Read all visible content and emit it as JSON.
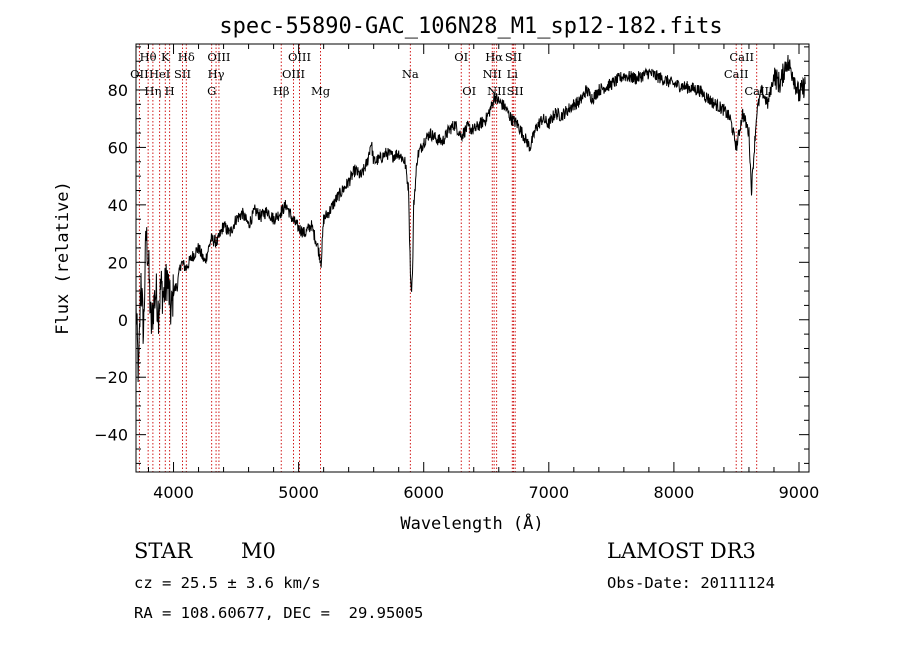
{
  "chart_data": {
    "type": "line",
    "title": "spec-55890-GAC_106N28_M1_sp12-182.fits",
    "xlabel": "Wavelength (Å)",
    "ylabel": "Flux (relative)",
    "xlim": [
      3700,
      9080
    ],
    "ylim": [
      -53,
      96
    ],
    "x_ticks": [
      4000,
      5000,
      6000,
      7000,
      8000,
      9000
    ],
    "y_ticks": [
      -40,
      -20,
      0,
      20,
      40,
      60,
      80
    ],
    "x_tick_labels": [
      "4000",
      "5000",
      "6000",
      "7000",
      "8000",
      "9000"
    ],
    "y_tick_labels": [
      "−40",
      "−20",
      "0",
      "20",
      "40",
      "60",
      "80"
    ],
    "grid": false,
    "legend": "none",
    "colors": {
      "spectrum": "#000000",
      "lines": "#cc0000"
    },
    "series": [
      {
        "x": [
          3700,
          3720,
          3740,
          3760,
          3780,
          3800,
          3820,
          3840,
          3860,
          3880,
          3900,
          3920,
          3950,
          3980,
          4000,
          4030,
          4060,
          4100,
          4150,
          4200,
          4250,
          4300,
          4350,
          4400,
          4450,
          4500,
          4550,
          4600,
          4650,
          4700,
          4750,
          4800,
          4850,
          4900,
          4950,
          5000,
          5050,
          5100,
          5150,
          5180,
          5200,
          5250,
          5300,
          5350,
          5400,
          5450,
          5500,
          5550,
          5580,
          5600,
          5650,
          5700,
          5750,
          5800,
          5850,
          5880,
          5890,
          5900,
          5910,
          5920,
          5950,
          6000,
          6050,
          6100,
          6150,
          6200,
          6250,
          6300,
          6350,
          6400,
          6450,
          6500,
          6550,
          6563,
          6600,
          6650,
          6700,
          6750,
          6800,
          6850,
          6900,
          6950,
          7000,
          7050,
          7100,
          7150,
          7200,
          7250,
          7300,
          7350,
          7400,
          7450,
          7500,
          7600,
          7700,
          7800,
          7900,
          8000,
          8100,
          8200,
          8300,
          8400,
          8450,
          8500,
          8550,
          8600,
          8620,
          8662,
          8700,
          8750,
          8800,
          8850,
          8900,
          8950,
          9000,
          9050
        ],
        "y": [
          5,
          -20,
          15,
          -5,
          30,
          20,
          -3,
          5,
          10,
          3,
          12,
          8,
          15,
          2,
          10,
          12,
          20,
          18,
          22,
          25,
          20,
          28,
          27,
          33,
          30,
          35,
          37,
          33,
          38,
          36,
          38,
          35,
          37,
          40,
          35,
          32,
          30,
          33,
          26,
          20,
          35,
          38,
          42,
          45,
          48,
          52,
          50,
          55,
          62,
          55,
          56,
          58,
          57,
          58,
          55,
          45,
          22,
          10,
          15,
          40,
          57,
          62,
          65,
          63,
          62,
          66,
          68,
          64,
          67,
          66,
          68,
          70,
          75,
          78,
          76,
          74,
          70,
          68,
          64,
          60,
          67,
          70,
          68,
          72,
          71,
          73,
          75,
          76,
          80,
          77,
          80,
          81,
          82,
          85,
          84,
          86,
          84,
          82,
          81,
          80,
          76,
          73,
          70,
          60,
          72,
          65,
          45,
          72,
          80,
          75,
          85,
          82,
          90,
          86,
          78,
          82
        ]
      }
    ],
    "spectral_lines": [
      {
        "name": "Hθ",
        "wavelength": 3797,
        "row": 0
      },
      {
        "name": "OII",
        "wavelength": 3727,
        "row": 1
      },
      {
        "name": "Hη",
        "wavelength": 3835,
        "row": 2
      },
      {
        "name": "K",
        "wavelength": 3934,
        "row": 0
      },
      {
        "name": "HeI",
        "wavelength": 3889,
        "row": 1
      },
      {
        "name": "H",
        "wavelength": 3969,
        "row": 2
      },
      {
        "name": "Hδ",
        "wavelength": 4102,
        "row": 0
      },
      {
        "name": "SII",
        "wavelength": 4072,
        "row": 1
      },
      {
        "name": "OIII",
        "wavelength": 4363,
        "row": 0
      },
      {
        "name": "Hγ",
        "wavelength": 4340,
        "row": 1
      },
      {
        "name": "G",
        "wavelength": 4305,
        "row": 2
      },
      {
        "name": "OIII",
        "wavelength": 5007,
        "row": 0
      },
      {
        "name": "OIII",
        "wavelength": 4959,
        "row": 1
      },
      {
        "name": "Hβ",
        "wavelength": 4861,
        "row": 2
      },
      {
        "name": "Mg",
        "wavelength": 5175,
        "row": 2
      },
      {
        "name": "Na",
        "wavelength": 5893,
        "row": 1
      },
      {
        "name": "OI",
        "wavelength": 6300,
        "row": 0
      },
      {
        "name": "OI",
        "wavelength": 6364,
        "row": 2
      },
      {
        "name": "Hα",
        "wavelength": 6563,
        "row": 0
      },
      {
        "name": "NII",
        "wavelength": 6548,
        "row": 1
      },
      {
        "name": "NII",
        "wavelength": 6583,
        "row": 2
      },
      {
        "name": "SII",
        "wavelength": 6717,
        "row": 0
      },
      {
        "name": "Li",
        "wavelength": 6708,
        "row": 1
      },
      {
        "name": "SII",
        "wavelength": 6731,
        "row": 2
      },
      {
        "name": "CaII",
        "wavelength": 8542,
        "row": 0
      },
      {
        "name": "CaII",
        "wavelength": 8498,
        "row": 1
      },
      {
        "name": "CaII",
        "wavelength": 8662,
        "row": 2
      }
    ]
  },
  "info": {
    "class_label": "STAR",
    "subclass_label": "M0",
    "survey": "LAMOST DR3",
    "cz": "cz = 25.5 ± 3.6 km/s",
    "obs_date": "Obs-Date: 20111124",
    "coords": "RA = 108.60677, DEC =  29.95005"
  }
}
